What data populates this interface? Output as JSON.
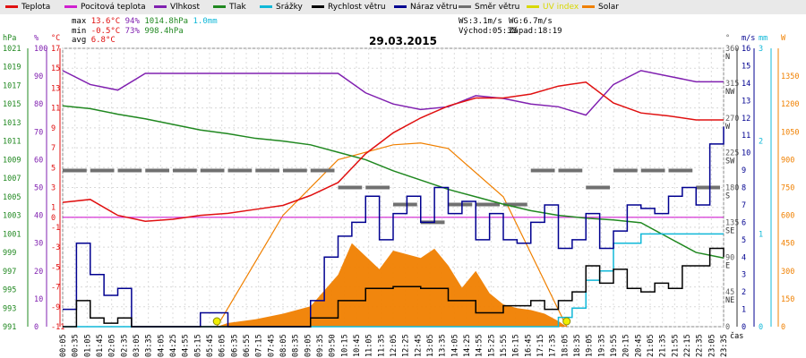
{
  "legend": [
    {
      "label": "Teplota",
      "color": "#e01010"
    },
    {
      "label": "Pocitová teplota",
      "color": "#d020d0"
    },
    {
      "label": "Vlhkost",
      "color": "#8020b0"
    },
    {
      "label": "Tlak",
      "color": "#208820"
    },
    {
      "label": "Srážky",
      "color": "#10b8d8"
    },
    {
      "label": "Rychlost větru",
      "color": "#000000"
    },
    {
      "label": "Náraz větru",
      "color": "#000090"
    },
    {
      "label": "Směr větru",
      "color": "#707070"
    },
    {
      "label": "UV index",
      "color": "#d8d800"
    },
    {
      "label": "Solar",
      "color": "#f08000"
    }
  ],
  "stats": {
    "max_label": "max",
    "max_temp": "13.6°C",
    "max_hum": "94%",
    "max_pres": "1014.8hPa",
    "max_rain": "1.0mm",
    "min_label": "min",
    "min_temp": "-0.5°C",
    "min_hum": "73%",
    "min_pres": "998.4hPa",
    "avg_label": "avg",
    "avg_temp": "6.8°C"
  },
  "wind_info": {
    "ws": "WS:3.1m/s",
    "wg": "WG:6.7m/s",
    "sunrise": "Východ:05:38",
    "sunset": "Západ:18:19"
  },
  "chart_data": {
    "type": "line",
    "title": "29.03.2015",
    "xlabel": "čas",
    "x_ticks": [
      "00:05",
      "00:35",
      "01:05",
      "01:45",
      "02:05",
      "02:35",
      "03:05",
      "03:35",
      "04:05",
      "04:25",
      "04:55",
      "05:15",
      "05:45",
      "06:05",
      "06:35",
      "06:55",
      "07:15",
      "07:45",
      "08:05",
      "08:35",
      "09:05",
      "09:35",
      "09:50",
      "10:15",
      "10:45",
      "11:05",
      "11:35",
      "12:05",
      "12:25",
      "12:45",
      "13:05",
      "13:35",
      "14:05",
      "14:25",
      "14:55",
      "15:25",
      "15:55",
      "16:15",
      "16:45",
      "17:15",
      "17:35",
      "18:05",
      "18:35",
      "19:05",
      "19:35",
      "19:55",
      "20:15",
      "20:45",
      "21:05",
      "21:35",
      "21:55",
      "22:15",
      "22:35",
      "23:05",
      "23:35"
    ],
    "axes": {
      "hPa": {
        "label": "hPa",
        "range": [
          991,
          1021
        ],
        "ticks": [
          "991",
          "993",
          "995",
          "997",
          "999",
          "1001",
          "1003",
          "1005",
          "1007",
          "1009",
          "1011",
          "1013",
          "1015",
          "1017",
          "1019",
          "1021"
        ]
      },
      "percent": {
        "label": "%",
        "range": [
          0,
          100
        ],
        "ticks": [
          "0",
          "10",
          "20",
          "30",
          "40",
          "50",
          "60",
          "70",
          "80",
          "90",
          "100"
        ]
      },
      "celsius": {
        "label": "°C",
        "range": [
          -11,
          17
        ],
        "ticks": [
          "-11",
          "-9",
          "-7",
          "-5",
          "-3",
          "-1",
          "0",
          "1",
          "3",
          "5",
          "7",
          "9",
          "11",
          "13",
          "15",
          "17"
        ]
      },
      "direction": {
        "label": "°",
        "range": [
          0,
          360
        ],
        "ticks": [
          "0",
          "45",
          "90",
          "135",
          "180",
          "225",
          "270",
          "315",
          "360"
        ],
        "dirs": [
          "",
          "NE",
          "E",
          "SE",
          "S",
          "SW",
          "W",
          "NW",
          "N"
        ]
      },
      "ms": {
        "label": "m/s",
        "range": [
          0,
          16
        ],
        "ticks": [
          "0",
          "1",
          "2",
          "3",
          "4",
          "5",
          "6",
          "7",
          "8",
          "9",
          "10",
          "11",
          "12",
          "13",
          "14",
          "15",
          "16"
        ]
      },
      "mm": {
        "label": "mm",
        "range": [
          0,
          3
        ],
        "ticks": [
          "0",
          "1",
          "2",
          "3"
        ]
      },
      "W": {
        "label": "W",
        "range": [
          0,
          1500
        ],
        "ticks": [
          "0",
          "150",
          "300",
          "450",
          "600",
          "750",
          "900",
          "1050",
          "1200",
          "1350",
          "1500"
        ]
      }
    },
    "series": [
      {
        "name": "Teplota",
        "unit": "°C",
        "x": [
          0,
          1,
          2,
          3,
          4,
          5,
          6,
          7,
          8,
          9,
          10,
          11,
          12,
          13,
          14,
          15,
          16,
          17,
          18,
          19,
          20,
          21,
          22,
          23,
          24
        ],
        "values": [
          1.5,
          1.8,
          0.2,
          -0.4,
          -0.2,
          0.2,
          0.4,
          0.8,
          1.2,
          2.2,
          3.5,
          6.4,
          8.5,
          10.0,
          11.2,
          12.0,
          12.0,
          12.4,
          13.2,
          13.6,
          11.5,
          10.5,
          10.2,
          9.8,
          9.8
        ]
      },
      {
        "name": "Pocitová teplota",
        "unit": "°C",
        "x": [
          0,
          24
        ],
        "values": [
          0,
          0
        ]
      },
      {
        "name": "Vlhkost",
        "unit": "%",
        "x": [
          0,
          1,
          2,
          3,
          4,
          5,
          6,
          7,
          8,
          9,
          10,
          11,
          12,
          13,
          14,
          15,
          16,
          17,
          18,
          19,
          20,
          21,
          22,
          23,
          24
        ],
        "values": [
          92,
          87,
          85,
          91,
          91,
          91,
          91,
          91,
          91,
          91,
          91,
          84,
          80,
          78,
          79,
          83,
          82,
          80,
          79,
          76,
          87,
          92,
          90,
          88,
          88
        ]
      },
      {
        "name": "Tlak",
        "unit": "hPa",
        "x": [
          0,
          1,
          2,
          3,
          4,
          5,
          6,
          7,
          8,
          9,
          10,
          11,
          12,
          13,
          14,
          15,
          16,
          17,
          18,
          19,
          20,
          21,
          22,
          23,
          24
        ],
        "values": [
          1014.8,
          1014.5,
          1013.9,
          1013.4,
          1012.8,
          1012.2,
          1011.8,
          1011.3,
          1011.0,
          1010.6,
          1009.8,
          1009.0,
          1007.8,
          1006.8,
          1005.8,
          1005.0,
          1004.2,
          1003.5,
          1003.0,
          1002.7,
          1002.5,
          1002.2,
          1000.6,
          999.0,
          998.4
        ]
      },
      {
        "name": "Srážky",
        "unit": "mm",
        "x": [
          0,
          17.5,
          18,
          18.5,
          19,
          19.5,
          20,
          21,
          22,
          24
        ],
        "values": [
          0,
          0,
          0.1,
          0.2,
          0.5,
          0.6,
          0.9,
          1.0,
          1.0,
          1.0
        ]
      },
      {
        "name": "Rychlost větru",
        "unit": "m/s",
        "x": [
          0,
          0.5,
          1,
          1.5,
          2,
          2.5,
          3,
          4,
          5,
          6,
          7,
          8,
          9,
          10,
          11,
          12,
          13,
          14,
          15,
          16,
          17,
          17.5,
          18,
          18.5,
          19,
          19.5,
          20,
          20.5,
          21,
          21.5,
          22,
          22.5,
          23,
          23.5,
          24
        ],
        "values": [
          0,
          1.5,
          0.5,
          0.2,
          0.5,
          0,
          0,
          0,
          0,
          0,
          0,
          0,
          0.5,
          1.5,
          2.2,
          2.3,
          2.2,
          1.5,
          0.8,
          1.2,
          1.5,
          1.0,
          1.5,
          2.0,
          3.5,
          2.5,
          3.3,
          2.2,
          2.0,
          2.5,
          2.2,
          3.5,
          3.5,
          4.5,
          4.0
        ]
      },
      {
        "name": "Náraz větru",
        "unit": "m/s",
        "x": [
          0,
          0.5,
          1,
          1.5,
          2,
          2.5,
          3,
          4,
          5,
          6,
          7,
          8,
          9,
          9.5,
          10,
          10.5,
          11,
          11.5,
          12,
          12.5,
          13,
          13.5,
          14,
          14.5,
          15,
          15.5,
          16,
          16.5,
          17,
          17.5,
          18,
          18.5,
          19,
          19.5,
          20,
          20.5,
          21,
          21.5,
          22,
          22.5,
          23,
          23.5,
          24
        ],
        "values": [
          1.0,
          4.8,
          3.0,
          1.8,
          2.2,
          0,
          0,
          0,
          0.8,
          0,
          0,
          0,
          1.5,
          4.0,
          5.2,
          6.0,
          7.5,
          5.0,
          6.5,
          7.5,
          6.0,
          8.0,
          6.5,
          7.2,
          5.0,
          6.5,
          5.0,
          4.8,
          6.0,
          7.0,
          4.5,
          5.0,
          6.5,
          4.5,
          5.5,
          7.0,
          6.8,
          6.5,
          7.5,
          8.0,
          7.0,
          10.5,
          11.5
        ]
      },
      {
        "name": "Směr větru",
        "unit": "°",
        "x": [
          0,
          1,
          2,
          3,
          4,
          5,
          6,
          7,
          8,
          9,
          10,
          11,
          12,
          13,
          14,
          15,
          16,
          17,
          18,
          19,
          20,
          21,
          22,
          23,
          24
        ],
        "values": [
          202,
          202,
          202,
          202,
          202,
          202,
          202,
          202,
          202,
          202,
          180,
          180,
          158,
          135,
          158,
          158,
          158,
          202,
          202,
          180,
          202,
          202,
          202,
          180,
          180
        ]
      },
      {
        "name": "UV index",
        "unit": "",
        "x": [
          5.6,
          18.3
        ],
        "values": [
          0,
          0
        ]
      },
      {
        "name": "Solar",
        "unit": "W",
        "x": [
          5.6,
          6,
          7,
          8,
          9,
          10,
          10.5,
          11,
          11.5,
          12,
          12.5,
          13,
          13.5,
          14,
          14.5,
          15,
          15.5,
          16,
          16.5,
          17,
          17.5,
          18,
          18.3
        ],
        "values": [
          0,
          20,
          40,
          70,
          110,
          280,
          450,
          380,
          310,
          410,
          390,
          370,
          420,
          330,
          210,
          300,
          180,
          120,
          100,
          90,
          70,
          30,
          0
        ]
      },
      {
        "name": "Solar theoretical",
        "unit": "W",
        "x": [
          5.6,
          8,
          10,
          12,
          13,
          14,
          16,
          18.3
        ],
        "values": [
          0,
          600,
          900,
          980,
          990,
          960,
          700,
          0
        ]
      }
    ]
  }
}
